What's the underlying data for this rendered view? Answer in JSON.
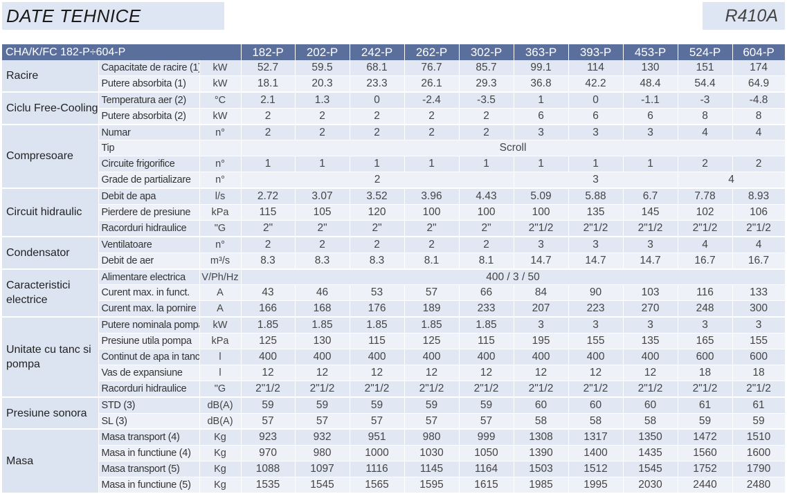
{
  "header": {
    "title": "DATE TEHNICE",
    "refrigerant": "R410A"
  },
  "table": {
    "model_range": "CHA/K/FC 182-P÷604-P",
    "models": [
      "182-P",
      "202-P",
      "242-P",
      "262-P",
      "302-P",
      "363-P",
      "393-P",
      "453-P",
      "524-P",
      "604-P"
    ],
    "groups": [
      {
        "name": "Racire",
        "rows": [
          {
            "param": "Capacitate de racire (1)",
            "unit": "kW",
            "values": [
              "52.7",
              "59.5",
              "68.1",
              "76.7",
              "85.7",
              "99.1",
              "114",
              "130",
              "151",
              "174"
            ]
          },
          {
            "param": "Putere absorbita (1)",
            "unit": "kW",
            "values": [
              "18.1",
              "20.3",
              "23.3",
              "26.1",
              "29.3",
              "36.8",
              "42.2",
              "48.4",
              "54.4",
              "64.9"
            ]
          }
        ]
      },
      {
        "name": "Ciclu Free-Cooling",
        "rows": [
          {
            "param": "Temperatura aer (2)",
            "unit": "°C",
            "values": [
              "2.1",
              "1.3",
              "0",
              "-2.4",
              "-3.5",
              "1",
              "0",
              "-1.1",
              "-3",
              "-4.8"
            ]
          },
          {
            "param": "Putere absorbita (2)",
            "unit": "kW",
            "values": [
              "2",
              "2",
              "2",
              "2",
              "2",
              "6",
              "6",
              "6",
              "8",
              "8"
            ]
          }
        ]
      },
      {
        "name": "Compresoare",
        "rows": [
          {
            "param": "Numar",
            "unit": "n°",
            "values": [
              "2",
              "2",
              "2",
              "2",
              "2",
              "3",
              "3",
              "3",
              "4",
              "4"
            ]
          },
          {
            "param": "Tip",
            "unit": "",
            "spans": [
              {
                "text": "Scroll",
                "cols": 10
              }
            ]
          },
          {
            "param": "Circuite frigorifice",
            "unit": "n°",
            "values": [
              "1",
              "1",
              "1",
              "1",
              "1",
              "1",
              "1",
              "1",
              "2",
              "2"
            ]
          },
          {
            "param": "Grade de partializare",
            "unit": "n°",
            "spans": [
              {
                "text": "2",
                "cols": 5
              },
              {
                "text": "3",
                "cols": 3
              },
              {
                "text": "4",
                "cols": 2
              }
            ]
          }
        ]
      },
      {
        "name": "Circuit hidraulic",
        "rows": [
          {
            "param": "Debit de apa",
            "unit": "l/s",
            "values": [
              "2.72",
              "3.07",
              "3.52",
              "3.96",
              "4.43",
              "5.09",
              "5.88",
              "6.7",
              "7.78",
              "8.93"
            ]
          },
          {
            "param": "Pierdere de presiune",
            "unit": "kPa",
            "values": [
              "115",
              "105",
              "120",
              "100",
              "100",
              "100",
              "135",
              "145",
              "102",
              "106"
            ]
          },
          {
            "param": "Racorduri hidraulice",
            "unit": "\"G",
            "values": [
              "2\"",
              "2\"",
              "2\"",
              "2\"",
              "2\"",
              "2\"1/2",
              "2\"1/2",
              "2\"1/2",
              "2\"1/2",
              "2\"1/2"
            ]
          }
        ]
      },
      {
        "name": "Condensator",
        "rows": [
          {
            "param": "Ventilatoare",
            "unit": "n°",
            "values": [
              "2",
              "2",
              "2",
              "2",
              "2",
              "3",
              "3",
              "3",
              "4",
              "4"
            ]
          },
          {
            "param": "Debit de aer",
            "unit": "m³/s",
            "values": [
              "8.3",
              "8.3",
              "8.3",
              "8.1",
              "8.1",
              "14.7",
              "14.7",
              "14.7",
              "16.7",
              "16.7"
            ]
          }
        ]
      },
      {
        "name": "Caracteristici electrice",
        "rows": [
          {
            "param": "Alimentare electrica",
            "unit": "V/Ph/Hz",
            "spans": [
              {
                "text": "400 / 3 / 50",
                "cols": 10
              }
            ]
          },
          {
            "param": "Curent max. in funct.",
            "unit": "A",
            "values": [
              "43",
              "46",
              "53",
              "57",
              "66",
              "84",
              "90",
              "103",
              "116",
              "133"
            ]
          },
          {
            "param": "Curent max. la pornire",
            "unit": "A",
            "values": [
              "166",
              "168",
              "176",
              "189",
              "233",
              "207",
              "223",
              "270",
              "248",
              "300"
            ]
          }
        ]
      },
      {
        "name": "Unitate cu tanc si pompa",
        "rows": [
          {
            "param": "Putere nominala pompa",
            "unit": "kW",
            "values": [
              "1.85",
              "1.85",
              "1.85",
              "1.85",
              "1.85",
              "3",
              "3",
              "3",
              "3",
              "3"
            ]
          },
          {
            "param": "Presiune utila pompa",
            "unit": "kPa",
            "values": [
              "125",
              "130",
              "115",
              "125",
              "115",
              "195",
              "155",
              "135",
              "165",
              "155"
            ]
          },
          {
            "param": "Continut de apa in tanc",
            "unit": "l",
            "values": [
              "400",
              "400",
              "400",
              "400",
              "400",
              "400",
              "400",
              "400",
              "600",
              "600"
            ]
          },
          {
            "param": "Vas de expansiune",
            "unit": "l",
            "values": [
              "12",
              "12",
              "12",
              "12",
              "12",
              "12",
              "12",
              "12",
              "18",
              "18"
            ]
          },
          {
            "param": "Racorduri hidraulice",
            "unit": "\"G",
            "values": [
              "2\"1/2",
              "2\"1/2",
              "2\"1/2",
              "2\"1/2",
              "2\"1/2",
              "2\"1/2",
              "2\"1/2",
              "2\"1/2",
              "2\"1/2",
              "2\"1/2"
            ]
          }
        ]
      },
      {
        "name": "Presiune sonora",
        "rows": [
          {
            "param": "STD (3)",
            "unit": "dB(A)",
            "values": [
              "59",
              "59",
              "59",
              "59",
              "59",
              "60",
              "60",
              "60",
              "61",
              "61"
            ]
          },
          {
            "param": "SL (3)",
            "unit": "dB(A)",
            "values": [
              "57",
              "57",
              "57",
              "57",
              "57",
              "58",
              "58",
              "58",
              "59",
              "59"
            ]
          }
        ]
      },
      {
        "name": "Masa",
        "rows": [
          {
            "param": "Masa transport (4)",
            "unit": "Kg",
            "values": [
              "923",
              "932",
              "951",
              "980",
              "999",
              "1308",
              "1317",
              "1350",
              "1472",
              "1510"
            ]
          },
          {
            "param": "Masa in functiune (4)",
            "unit": "Kg",
            "values": [
              "970",
              "980",
              "1000",
              "1030",
              "1050",
              "1390",
              "1400",
              "1435",
              "1560",
              "1600"
            ]
          },
          {
            "param": "Masa transport (5)",
            "unit": "Kg",
            "values": [
              "1088",
              "1097",
              "1116",
              "1145",
              "1164",
              "1503",
              "1512",
              "1545",
              "1752",
              "1790"
            ]
          },
          {
            "param": "Masa in functiune (5)",
            "unit": "Kg",
            "values": [
              "1535",
              "1545",
              "1565",
              "1595",
              "1615",
              "1985",
              "1995",
              "2030",
              "2440",
              "2480"
            ]
          }
        ]
      }
    ]
  }
}
